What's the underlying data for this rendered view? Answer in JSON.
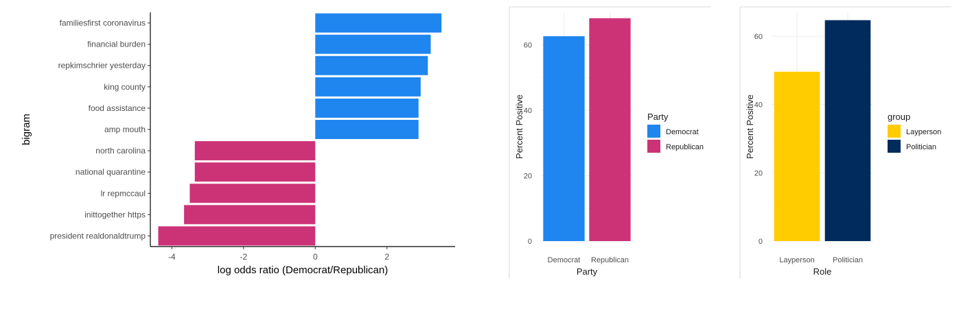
{
  "colors": {
    "democrat": "#1e86ee",
    "republican": "#cc3377",
    "layperson": "#ffcc00",
    "politician": "#002b5c",
    "grid": "#ebebeb",
    "panel_border": "#d9d9d9"
  },
  "chart_data": [
    {
      "type": "bar",
      "orientation": "horizontal",
      "categories": [
        "familiesfirst coronavirus",
        "financial burden",
        "repkimschrier yesterday",
        "king county",
        "food assistance",
        "amp mouth",
        "north carolina",
        "national quarantine",
        "lr repmccaul",
        "inittogether https",
        "president realdonaldtrump"
      ],
      "values": [
        3.52,
        3.22,
        3.14,
        2.94,
        2.88,
        2.88,
        -3.36,
        -3.36,
        -3.5,
        -3.66,
        -4.38
      ],
      "xlabel": "log odds ratio (Democrat/Republican)",
      "ylabel": "bigram",
      "xlim": [
        -4.6,
        3.9
      ],
      "xticks": [
        -4,
        -2,
        0,
        2
      ],
      "grid": false
    },
    {
      "type": "bar",
      "categories": [
        "Democrat",
        "Republican"
      ],
      "values": [
        62.7,
        68.2
      ],
      "xlabel": "Party",
      "ylabel": "Percent Positive",
      "ylim": [
        0,
        70
      ],
      "yticks": [
        0,
        20,
        40,
        60
      ],
      "grid": true,
      "legend": {
        "title": "Party",
        "entries": [
          "Democrat",
          "Republican"
        ],
        "placement": "right"
      }
    },
    {
      "type": "bar",
      "categories": [
        "Layperson",
        "Politician"
      ],
      "values": [
        49.6,
        64.7
      ],
      "xlabel": "Role",
      "ylabel": "Percent Positive",
      "ylim": [
        0,
        67
      ],
      "yticks": [
        0,
        20,
        40,
        60
      ],
      "grid": true,
      "legend": {
        "title": "group",
        "entries": [
          "Layperson",
          "Politician"
        ],
        "placement": "right"
      }
    }
  ]
}
